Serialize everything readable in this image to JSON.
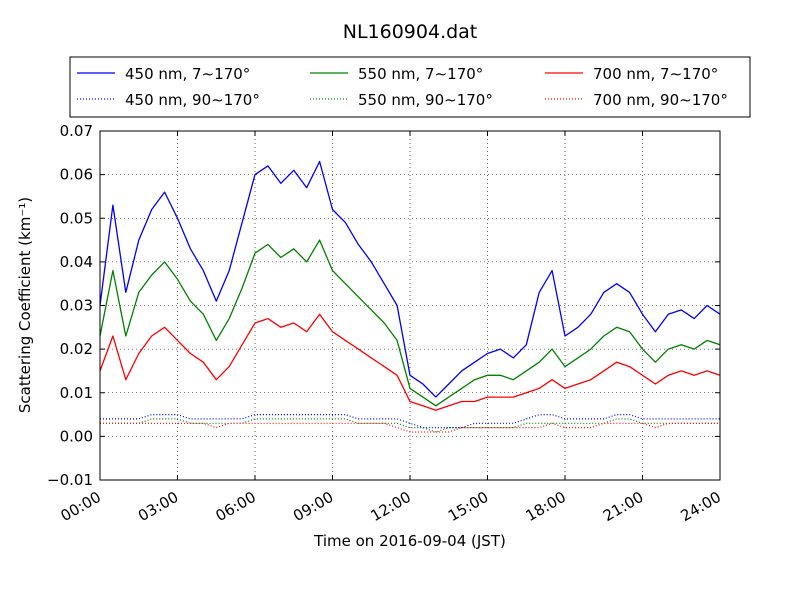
{
  "chart_data": {
    "type": "line",
    "title": "NL160904.dat",
    "xlabel": "Time on 2016-09-04 (JST)",
    "ylabel": "Scattering Coefficient (km⁻¹)",
    "xlim": [
      "00:00",
      "24:00"
    ],
    "ylim": [
      -0.01,
      0.07
    ],
    "x_ticks": [
      "00:00",
      "03:00",
      "06:00",
      "09:00",
      "12:00",
      "15:00",
      "18:00",
      "21:00",
      "24:00"
    ],
    "y_ticks": [
      "−0.01",
      "0.00",
      "0.01",
      "0.02",
      "0.03",
      "0.04",
      "0.05",
      "0.06",
      "0.07"
    ],
    "grid": true,
    "legend_position": "top, above plot, 3 columns",
    "x": [
      "00:00",
      "00:30",
      "01:00",
      "01:30",
      "02:00",
      "02:30",
      "03:00",
      "03:30",
      "04:00",
      "04:30",
      "05:00",
      "05:30",
      "06:00",
      "06:30",
      "07:00",
      "07:30",
      "08:00",
      "08:30",
      "09:00",
      "09:30",
      "10:00",
      "10:30",
      "11:00",
      "11:30",
      "12:00",
      "12:30",
      "13:00",
      "13:30",
      "14:00",
      "14:30",
      "15:00",
      "15:30",
      "16:00",
      "16:30",
      "17:00",
      "17:30",
      "18:00",
      "18:30",
      "19:00",
      "19:30",
      "20:00",
      "20:30",
      "21:00",
      "21:30",
      "22:00",
      "22:30",
      "23:00",
      "23:30",
      "24:00"
    ],
    "series": [
      {
        "name": "450 nm, 7∼170°",
        "color": "#0000ff",
        "style": "solid",
        "values": [
          0.03,
          0.053,
          0.033,
          0.045,
          0.052,
          0.056,
          0.05,
          0.043,
          0.038,
          0.031,
          0.038,
          0.049,
          0.06,
          0.062,
          0.058,
          0.061,
          0.057,
          0.063,
          0.052,
          0.049,
          0.044,
          0.04,
          0.035,
          0.03,
          0.014,
          0.012,
          0.009,
          0.012,
          0.015,
          0.017,
          0.019,
          0.02,
          0.018,
          0.021,
          0.033,
          0.038,
          0.023,
          0.025,
          0.028,
          0.033,
          0.035,
          0.033,
          0.028,
          0.024,
          0.028,
          0.029,
          0.027,
          0.03,
          0.028
        ]
      },
      {
        "name": "450 nm, 90∼170°",
        "color": "#0000ff",
        "style": "dotted",
        "values": [
          0.004,
          0.004,
          0.004,
          0.004,
          0.005,
          0.005,
          0.005,
          0.004,
          0.004,
          0.004,
          0.004,
          0.004,
          0.005,
          0.005,
          0.005,
          0.005,
          0.005,
          0.005,
          0.005,
          0.005,
          0.004,
          0.004,
          0.004,
          0.004,
          0.003,
          0.002,
          0.002,
          0.002,
          0.002,
          0.003,
          0.003,
          0.003,
          0.003,
          0.004,
          0.005,
          0.005,
          0.004,
          0.004,
          0.004,
          0.004,
          0.005,
          0.005,
          0.004,
          0.004,
          0.004,
          0.004,
          0.004,
          0.004,
          0.004
        ]
      },
      {
        "name": "550 nm, 7∼170°",
        "color": "#008000",
        "style": "solid",
        "values": [
          0.023,
          0.038,
          0.023,
          0.033,
          0.037,
          0.04,
          0.036,
          0.031,
          0.028,
          0.022,
          0.027,
          0.034,
          0.042,
          0.044,
          0.041,
          0.043,
          0.04,
          0.045,
          0.038,
          0.035,
          0.032,
          0.029,
          0.026,
          0.022,
          0.011,
          0.009,
          0.007,
          0.009,
          0.011,
          0.013,
          0.014,
          0.014,
          0.013,
          0.015,
          0.017,
          0.02,
          0.016,
          0.018,
          0.02,
          0.023,
          0.025,
          0.024,
          0.02,
          0.017,
          0.02,
          0.021,
          0.02,
          0.022,
          0.021
        ]
      },
      {
        "name": "550 nm, 90∼170°",
        "color": "#008000",
        "style": "dotted",
        "values": [
          0.003,
          0.003,
          0.003,
          0.003,
          0.004,
          0.004,
          0.004,
          0.003,
          0.003,
          0.003,
          0.003,
          0.003,
          0.004,
          0.004,
          0.004,
          0.004,
          0.004,
          0.004,
          0.004,
          0.004,
          0.003,
          0.003,
          0.003,
          0.003,
          0.002,
          0.002,
          0.001,
          0.002,
          0.002,
          0.002,
          0.002,
          0.002,
          0.002,
          0.003,
          0.003,
          0.003,
          0.003,
          0.003,
          0.003,
          0.003,
          0.004,
          0.004,
          0.003,
          0.003,
          0.003,
          0.003,
          0.003,
          0.003,
          0.003
        ]
      },
      {
        "name": "700 nm, 7∼170°",
        "color": "#ff0000",
        "style": "solid",
        "values": [
          0.015,
          0.023,
          0.013,
          0.019,
          0.023,
          0.025,
          0.022,
          0.019,
          0.017,
          0.013,
          0.016,
          0.021,
          0.026,
          0.027,
          0.025,
          0.026,
          0.024,
          0.028,
          0.024,
          0.022,
          0.02,
          0.018,
          0.016,
          0.014,
          0.008,
          0.007,
          0.006,
          0.007,
          0.008,
          0.008,
          0.009,
          0.009,
          0.009,
          0.01,
          0.011,
          0.013,
          0.011,
          0.012,
          0.013,
          0.015,
          0.017,
          0.016,
          0.014,
          0.012,
          0.014,
          0.015,
          0.014,
          0.015,
          0.014
        ]
      },
      {
        "name": "700 nm, 90∼170°",
        "color": "#ff0000",
        "style": "dotted",
        "values": [
          0.003,
          0.003,
          0.003,
          0.003,
          0.003,
          0.003,
          0.003,
          0.003,
          0.003,
          0.002,
          0.003,
          0.003,
          0.003,
          0.003,
          0.003,
          0.003,
          0.003,
          0.003,
          0.003,
          0.003,
          0.003,
          0.003,
          0.003,
          0.002,
          0.001,
          0.001,
          0.001,
          0.001,
          0.002,
          0.002,
          0.002,
          0.002,
          0.002,
          0.002,
          0.002,
          0.003,
          0.002,
          0.002,
          0.002,
          0.003,
          0.003,
          0.003,
          0.003,
          0.002,
          0.003,
          0.003,
          0.003,
          0.003,
          0.003
        ]
      }
    ]
  }
}
